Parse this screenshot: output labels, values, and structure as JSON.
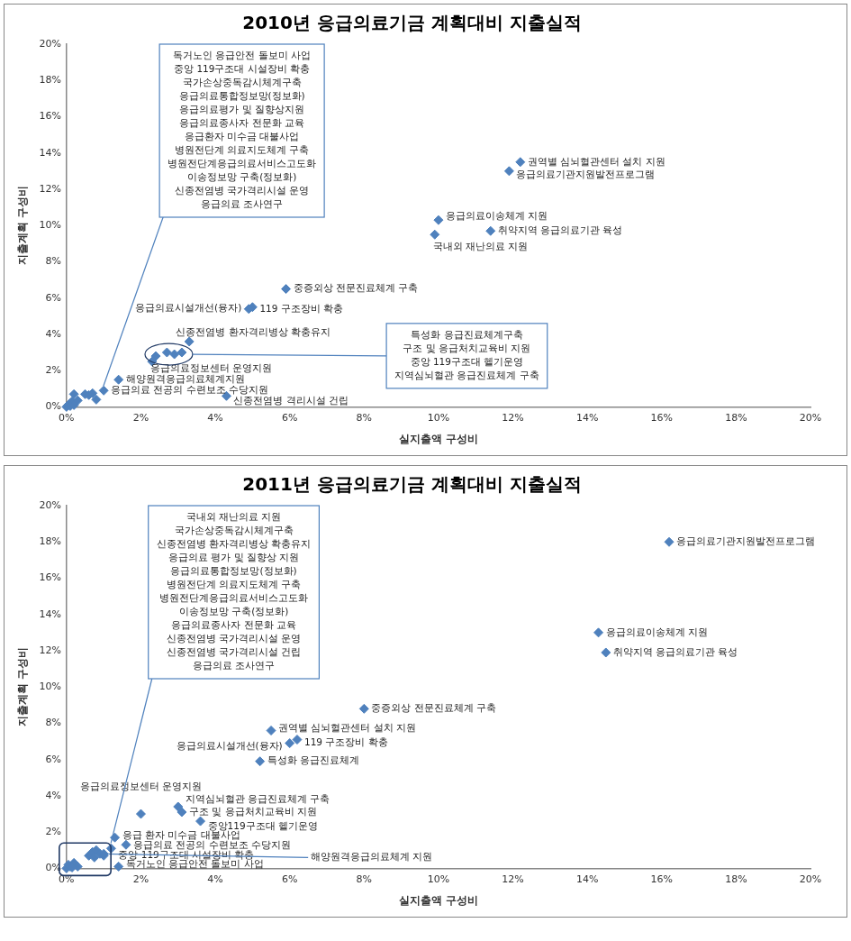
{
  "chart_data": [
    {
      "type": "scatter",
      "title": "2010년 응급의료기금 계획대비 지출실적",
      "x_label": "실지출액 구성비",
      "y_label": "지출계획 구성비",
      "xlim": [
        0,
        20
      ],
      "ylim": [
        0,
        20
      ],
      "xticks": [
        {
          "value": 0,
          "label": "0%"
        },
        {
          "value": 2,
          "label": "2%"
        },
        {
          "value": 4,
          "label": "4%"
        },
        {
          "value": 6,
          "label": "6%"
        },
        {
          "value": 8,
          "label": "8%"
        },
        {
          "value": 10,
          "label": "10%"
        },
        {
          "value": 12,
          "label": "12%"
        },
        {
          "value": 14,
          "label": "14%"
        },
        {
          "value": 16,
          "label": "16%"
        },
        {
          "value": 18,
          "label": "18%"
        },
        {
          "value": 20,
          "label": "20%"
        }
      ],
      "yticks": [
        {
          "value": 0,
          "label": "0%"
        },
        {
          "value": 2,
          "label": "2%"
        },
        {
          "value": 4,
          "label": "4%"
        },
        {
          "value": 6,
          "label": "6%"
        },
        {
          "value": 8,
          "label": "8%"
        },
        {
          "value": 10,
          "label": "10%"
        },
        {
          "value": 12,
          "label": "12%"
        },
        {
          "value": 14,
          "label": "14%"
        },
        {
          "value": 16,
          "label": "16%"
        },
        {
          "value": 18,
          "label": "18%"
        },
        {
          "value": 20,
          "label": "20%"
        }
      ],
      "grid": false,
      "color": "#4f81bd",
      "marker": "diamond",
      "points": {
        "labels": [
          "권역별 심뇌혈관센터 설치 지원",
          "응급의료기관지원발전프로그램",
          "응급의료이송체계 지원",
          "취약지역 응급의료기관 육성",
          "국내외 재난의료 지원",
          "중증외상 전문진료체계 구축",
          "119 구조장비 확충",
          "응급의료시설개선(융자)",
          "신종전염병 환자격리병상 확충유지",
          "응급의료정보센터 운영지원",
          "해양원격응급의료체계지원",
          "응급의료 전공의 수련보조 수당지원",
          "신종전염병 격리시설 건립"
        ],
        "x": [
          12.2,
          11.9,
          10.0,
          11.4,
          9.9,
          5.9,
          5.0,
          4.9,
          3.3,
          2.3,
          1.4,
          1.0,
          4.3
        ],
        "values": [
          13.5,
          13.0,
          10.3,
          9.7,
          9.5,
          6.5,
          5.5,
          5.4,
          3.6,
          2.5,
          1.5,
          0.9,
          0.6
        ]
      },
      "callouts": [
        {
          "texts": [
            "독거노인 응급안전 돌보미 사업",
            "중앙 119구조대 시설장비 확충",
            "국가손상중독감시체계구축",
            "응급의료통합정보망(정보화)",
            "응급의료평가 및 질향상지원",
            "응급의료종사자 전문화 교육",
            "응급환자 미수금 대불사업",
            "병원전단계 의료지도체계 구축",
            "병원전단계응급의료서비스고도화",
            "이송정보망 구축(정보화)",
            "신종전염병 국가격리시설 운영",
            "응급의료 조사연구"
          ],
          "x": [
            0.0,
            0.05,
            0.1,
            0.15,
            0.2,
            0.3,
            0.5,
            0.6,
            0.7,
            0.8,
            0.1,
            0.2
          ],
          "values": [
            0.0,
            0.1,
            0.2,
            0.3,
            0.7,
            0.35,
            0.7,
            0.65,
            0.75,
            0.4,
            0.05,
            0.1
          ]
        },
        {
          "texts": [
            "특성화 응급진료체계구축",
            "구조 및 응급처치교육비 지원",
            "중앙 119구조대 헬기운영",
            "지역심뇌혈관 응급진료체계 구축"
          ],
          "x": [
            2.4,
            2.7,
            2.9,
            3.1
          ],
          "values": [
            2.8,
            3.0,
            2.9,
            3.0
          ]
        }
      ]
    },
    {
      "type": "scatter",
      "title": "2011년 응급의료기금 계획대비 지출실적",
      "x_label": "실지출액 구성비",
      "y_label": "지출계획 구성비",
      "xlim": [
        0,
        20
      ],
      "ylim": [
        0,
        20
      ],
      "xticks": [
        {
          "value": 0,
          "label": "0%"
        },
        {
          "value": 2,
          "label": "2%"
        },
        {
          "value": 4,
          "label": "4%"
        },
        {
          "value": 6,
          "label": "6%"
        },
        {
          "value": 8,
          "label": "8%"
        },
        {
          "value": 10,
          "label": "10%"
        },
        {
          "value": 12,
          "label": "12%"
        },
        {
          "value": 14,
          "label": "14%"
        },
        {
          "value": 16,
          "label": "16%"
        },
        {
          "value": 18,
          "label": "18%"
        },
        {
          "value": 20,
          "label": "20%"
        }
      ],
      "yticks": [
        {
          "value": 0,
          "label": "0%"
        },
        {
          "value": 2,
          "label": "2%"
        },
        {
          "value": 4,
          "label": "4%"
        },
        {
          "value": 6,
          "label": "6%"
        },
        {
          "value": 8,
          "label": "8%"
        },
        {
          "value": 10,
          "label": "10%"
        },
        {
          "value": 12,
          "label": "12%"
        },
        {
          "value": 14,
          "label": "14%"
        },
        {
          "value": 16,
          "label": "16%"
        },
        {
          "value": 18,
          "label": "18%"
        },
        {
          "value": 20,
          "label": "20%"
        }
      ],
      "grid": false,
      "color": "#4f81bd",
      "marker": "diamond",
      "points": {
        "labels": [
          "응급의료기관지원발전프로그램",
          "응급의료이송체계 지원",
          "취약지역 응급의료기관 육성",
          "중증외상 전문진료체계 구축",
          "권역별 심뇌혈관센터 설치 지원",
          "119 구조장비 확충",
          "응급의료시설개선(융자)",
          "특성화 응급진료체계",
          "응급의료정보센터 운영지원",
          "지역심뇌혈관 응급진료체계 구축",
          "구조 및 응급처치교육비 지원",
          "중앙119구조대 헬기운영",
          "응급 환자 미수금 대불사업",
          "응급의료 전공의 수련보조 수당지원",
          "중앙 119구조대 시설장비 확충",
          "독거노인 응급안전 돌보미 사업",
          "해양원격응급의료체계 지원"
        ],
        "x": [
          16.2,
          14.3,
          14.5,
          8.0,
          5.5,
          6.2,
          6.0,
          5.2,
          2.0,
          3.0,
          3.1,
          3.6,
          1.3,
          1.6,
          1.2,
          1.4,
          1.0
        ],
        "values": [
          18.0,
          13.0,
          11.9,
          8.8,
          7.6,
          7.1,
          6.9,
          5.9,
          3.0,
          3.4,
          3.1,
          2.6,
          1.7,
          1.3,
          1.1,
          0.1,
          0.8
        ]
      },
      "callouts": [
        {
          "texts": [
            "국내외 재난의료 지원",
            "국가손상중독감시체계구축",
            "신종전염병 환자격리병상 확충유지",
            "응급의료 평가 및 질향상 지원",
            "응급의료통합정보망(정보화)",
            "병원전단계 의료지도체계 구축",
            "병원전단계응급의료서비스고도화",
            "이송정보망 구축(정보화)",
            "응급의료종사자 전문화 교육",
            "신종전염병 국가격리시설 운영",
            "신종전염병 국가격리시설 건립",
            "응급의료 조사연구"
          ],
          "x": [
            0.0,
            0.05,
            0.1,
            0.2,
            0.3,
            0.6,
            0.7,
            0.75,
            0.8,
            0.9,
            1.0,
            0.15
          ],
          "values": [
            0.0,
            0.2,
            0.1,
            0.3,
            0.1,
            0.7,
            0.9,
            0.6,
            1.0,
            0.8,
            0.7,
            0.05
          ]
        }
      ]
    }
  ]
}
